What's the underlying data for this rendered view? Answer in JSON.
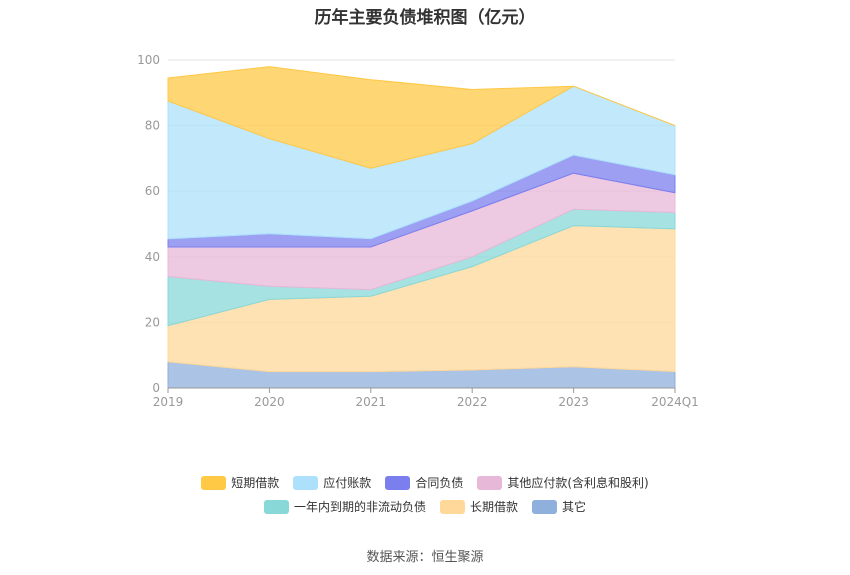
{
  "chart_data": {
    "type": "area",
    "stacked": true,
    "title": "历年主要负债堆积图（亿元）",
    "categories": [
      "2019",
      "2020",
      "2021",
      "2022",
      "2023",
      "2024Q1"
    ],
    "ylim": [
      0,
      100
    ],
    "yticks": [
      "0",
      "20",
      "40",
      "60",
      "80",
      "100"
    ],
    "series": [
      {
        "name": "其它",
        "color": "#8fafdc",
        "values": [
          8,
          5,
          5,
          5.5,
          6.5,
          5
        ]
      },
      {
        "name": "长期借款",
        "color": "#ffd89a",
        "values": [
          11,
          22,
          23,
          31.5,
          43,
          43.5
        ]
      },
      {
        "name": "一年内到期的非流动负债",
        "color": "#88d8d8",
        "values": [
          15,
          4,
          2,
          3,
          5,
          5
        ]
      },
      {
        "name": "其他应付款(含利息和股利)",
        "color": "#e8b8d8",
        "values": [
          9,
          12,
          13,
          14,
          11,
          6
        ]
      },
      {
        "name": "合同负债",
        "color": "#7b7fee",
        "values": [
          2.5,
          4,
          2.5,
          3,
          5.5,
          5.5
        ]
      },
      {
        "name": "应付账款",
        "color": "#ade0fb",
        "values": [
          42,
          29,
          21.5,
          17.5,
          21,
          15
        ]
      },
      {
        "name": "短期借款",
        "color": "#ffc845",
        "values": [
          7,
          22,
          27,
          16.5,
          0,
          0
        ]
      }
    ],
    "legend_order": [
      "短期借款",
      "应付账款",
      "合同负债",
      "其他应付款(含利息和股利)",
      "一年内到期的非流动负债",
      "长期借款",
      "其它"
    ]
  },
  "source_text": "数据来源：恒生聚源"
}
